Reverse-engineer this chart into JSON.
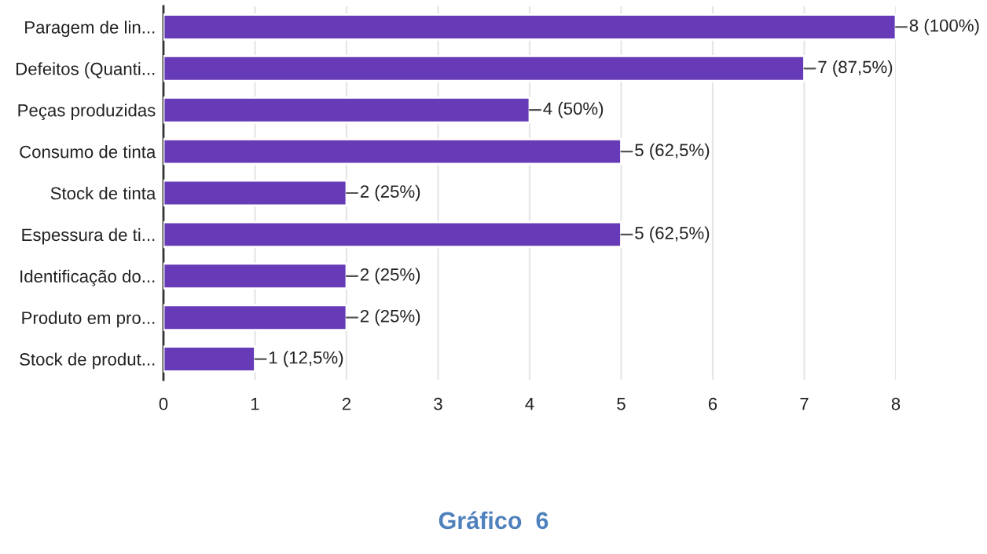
{
  "chart_data": {
    "type": "bar",
    "orientation": "horizontal",
    "categories": [
      "Paragem de lin...",
      "Defeitos (Quanti...",
      "Peças produzidas",
      "Consumo de tinta",
      "Stock de tinta",
      "Espessura de ti...",
      "Identificação do...",
      "Produto em pro...",
      "Stock de produt..."
    ],
    "values": [
      8,
      7,
      4,
      5,
      2,
      5,
      2,
      2,
      1
    ],
    "value_labels": [
      "8 (100%)",
      "7 (87,5%)",
      "4 (50%)",
      "5 (62,5%)",
      "2 (25%)",
      "5 (62,5%)",
      "2 (25%)",
      "2 (25%)",
      "1 (12,5%)"
    ],
    "color": "#673ab7",
    "xlim": [
      0,
      8
    ],
    "xticks": [
      0,
      1,
      2,
      3,
      4,
      5,
      6,
      7,
      8
    ],
    "grid": "x",
    "annotations": [
      "Gráfico  6"
    ]
  }
}
